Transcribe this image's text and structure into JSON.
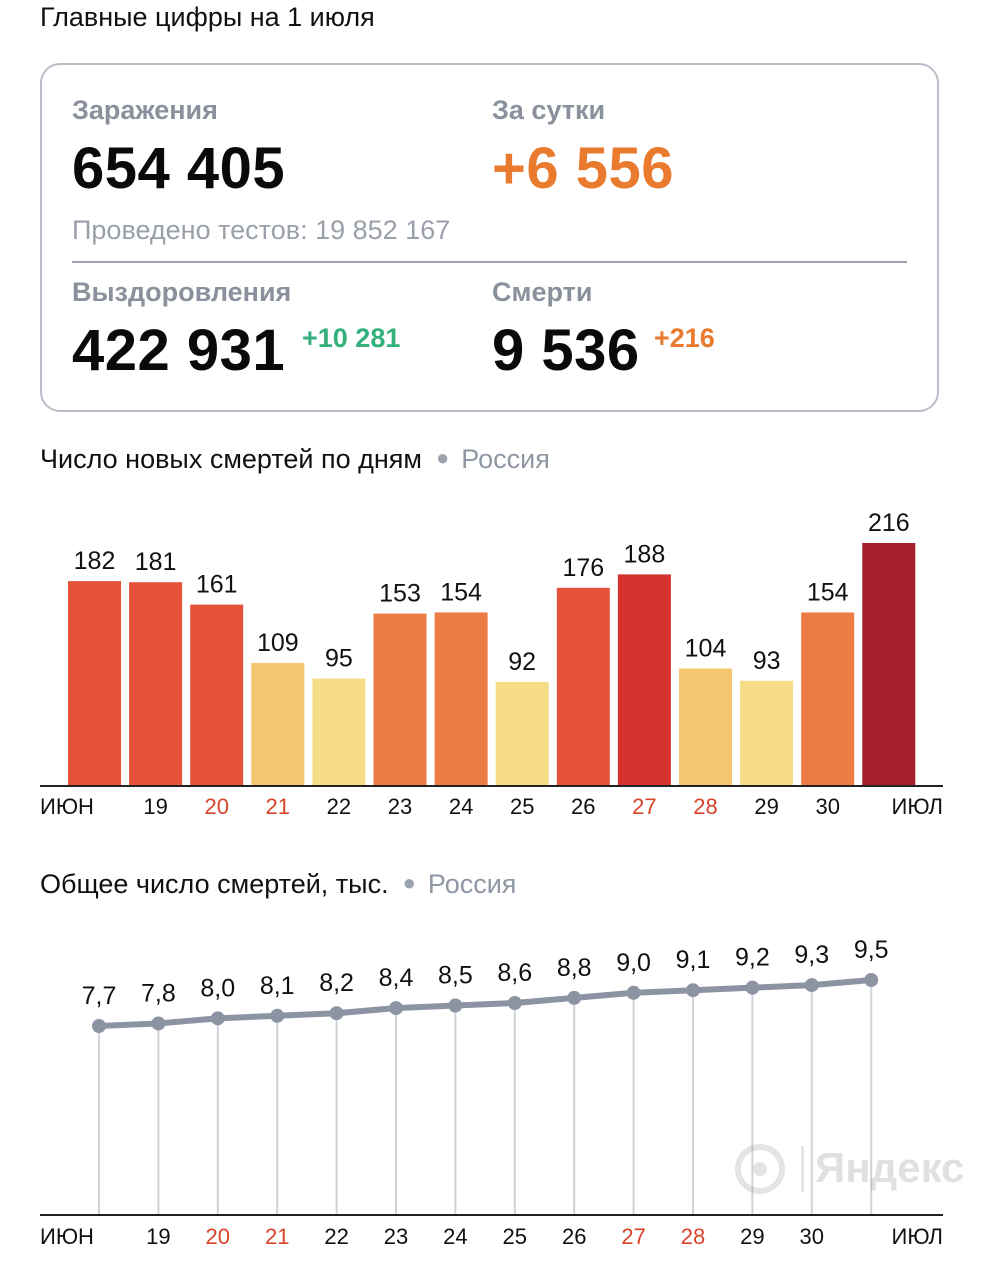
{
  "header": {
    "title": "Главные цифры на 1 июля"
  },
  "summary": {
    "infections_label": "Заражения",
    "infections_value": "654 405",
    "daily_label": "За сутки",
    "daily_value": "+6 556",
    "tests_text": "Проведено тестов: 19 852 167",
    "recoveries_label": "Выздоровления",
    "recoveries_value": "422 931",
    "recoveries_delta": "+10 281",
    "deaths_label": "Смерти",
    "deaths_value": "9 536",
    "deaths_delta": "+216",
    "colors": {
      "orange": "#e97a2e",
      "green": "#33b07b",
      "gray": "#8a919c"
    }
  },
  "daily_section": {
    "title": "Число новых смертей по дням",
    "region": "Россия"
  },
  "total_section": {
    "title": "Общее число смертей, тыс.",
    "region": "Россия"
  },
  "watermark": {
    "brand": "Яндекс"
  },
  "chart_data": [
    {
      "type": "bar",
      "title": "Число новых смертей по дням",
      "categories": [
        "июн",
        "19",
        "20",
        "21",
        "22",
        "23",
        "24",
        "25",
        "26",
        "27",
        "28",
        "29",
        "30",
        "июл"
      ],
      "values": [
        182,
        181,
        161,
        109,
        95,
        153,
        154,
        92,
        176,
        188,
        104,
        93,
        154,
        216
      ],
      "x_label_colors": [
        "#111",
        "#111",
        "#d9432a",
        "#d9432a",
        "#111",
        "#111",
        "#111",
        "#111",
        "#111",
        "#d9432a",
        "#d9432a",
        "#111",
        "#111",
        "#111"
      ],
      "bar_colors": [
        "#e4523a",
        "#e4523a",
        "#e4523a",
        "#f3c66f",
        "#f6dc86",
        "#ec7b45",
        "#ec7b45",
        "#f6dc86",
        "#e4523a",
        "#d4332d",
        "#f3c66f",
        "#f6dc86",
        "#ec7b45",
        "#a31f2b"
      ],
      "ylim": [
        0,
        216
      ],
      "grid": false
    },
    {
      "type": "line",
      "title": "Общее число смертей, тыс.",
      "categories": [
        "июн",
        "19",
        "20",
        "21",
        "22",
        "23",
        "24",
        "25",
        "26",
        "27",
        "28",
        "29",
        "30",
        "июл"
      ],
      "values": [
        7.7,
        7.8,
        8.0,
        8.1,
        8.2,
        8.4,
        8.5,
        8.6,
        8.8,
        9.0,
        9.1,
        9.2,
        9.3,
        9.5
      ],
      "value_labels": [
        "7,7",
        "7,8",
        "8,0",
        "8,1",
        "8,2",
        "8,4",
        "8,5",
        "8,6",
        "8,8",
        "9,0",
        "9,1",
        "9,2",
        "9,3",
        "9,5"
      ],
      "x_label_colors": [
        "#111",
        "#111",
        "#d9432a",
        "#d9432a",
        "#111",
        "#111",
        "#111",
        "#111",
        "#111",
        "#d9432a",
        "#d9432a",
        "#111",
        "#111",
        "#111"
      ],
      "line_color": "#8c94a3"
    }
  ]
}
